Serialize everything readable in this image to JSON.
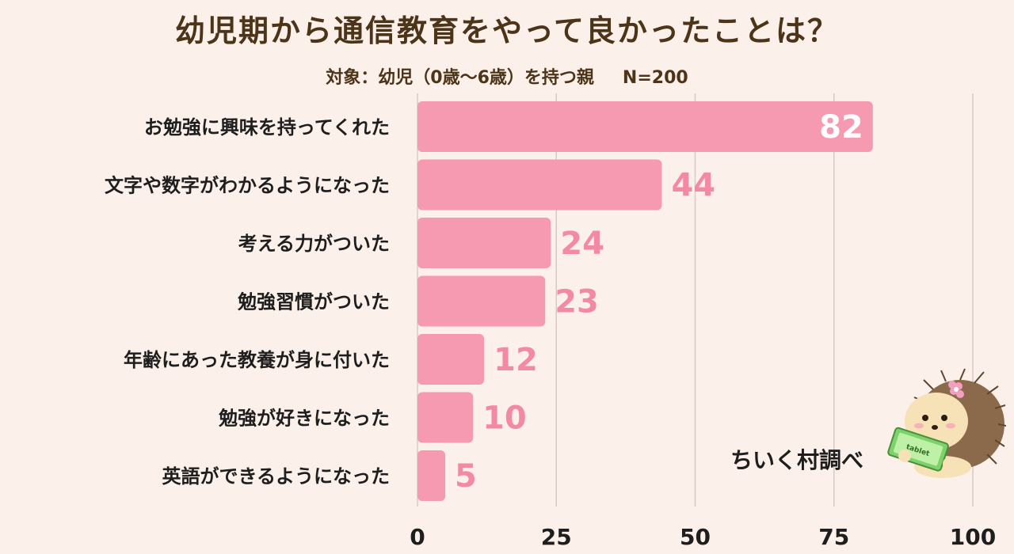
{
  "title": "幼児期から通信教育をやって良かったことは？",
  "subtitle": {
    "target": "対象：幼児（0歳～6歳）を持つ親",
    "n": "N=200"
  },
  "credit": "ちいく村調べ",
  "mascot": {
    "icon": "hedgehog-with-tablet-icon",
    "tablet_text": "tablet"
  },
  "colors": {
    "background": "#fcf0eb",
    "bar": "#f59ab0",
    "value_label_outside": "#f38aa4",
    "value_label_inside": "#ffffff",
    "text": "#1e1e1e",
    "title": "#4b3418",
    "grid": "#d9c9c6"
  },
  "chart_data": {
    "type": "bar",
    "orientation": "horizontal",
    "categories": [
      "お勉強に興味を持ってくれた",
      "文字や数字がわかるようになった",
      "考える力がついた",
      "勉強習慣がついた",
      "年齢にあった教養が身に付いた",
      "勉強が好きになった",
      "英語ができるようになった"
    ],
    "values": [
      82,
      44,
      24,
      23,
      12,
      10,
      5
    ],
    "xlim": [
      0,
      100
    ],
    "xticks": [
      0,
      25,
      50,
      75,
      100
    ],
    "grid": true,
    "legend": "none"
  }
}
